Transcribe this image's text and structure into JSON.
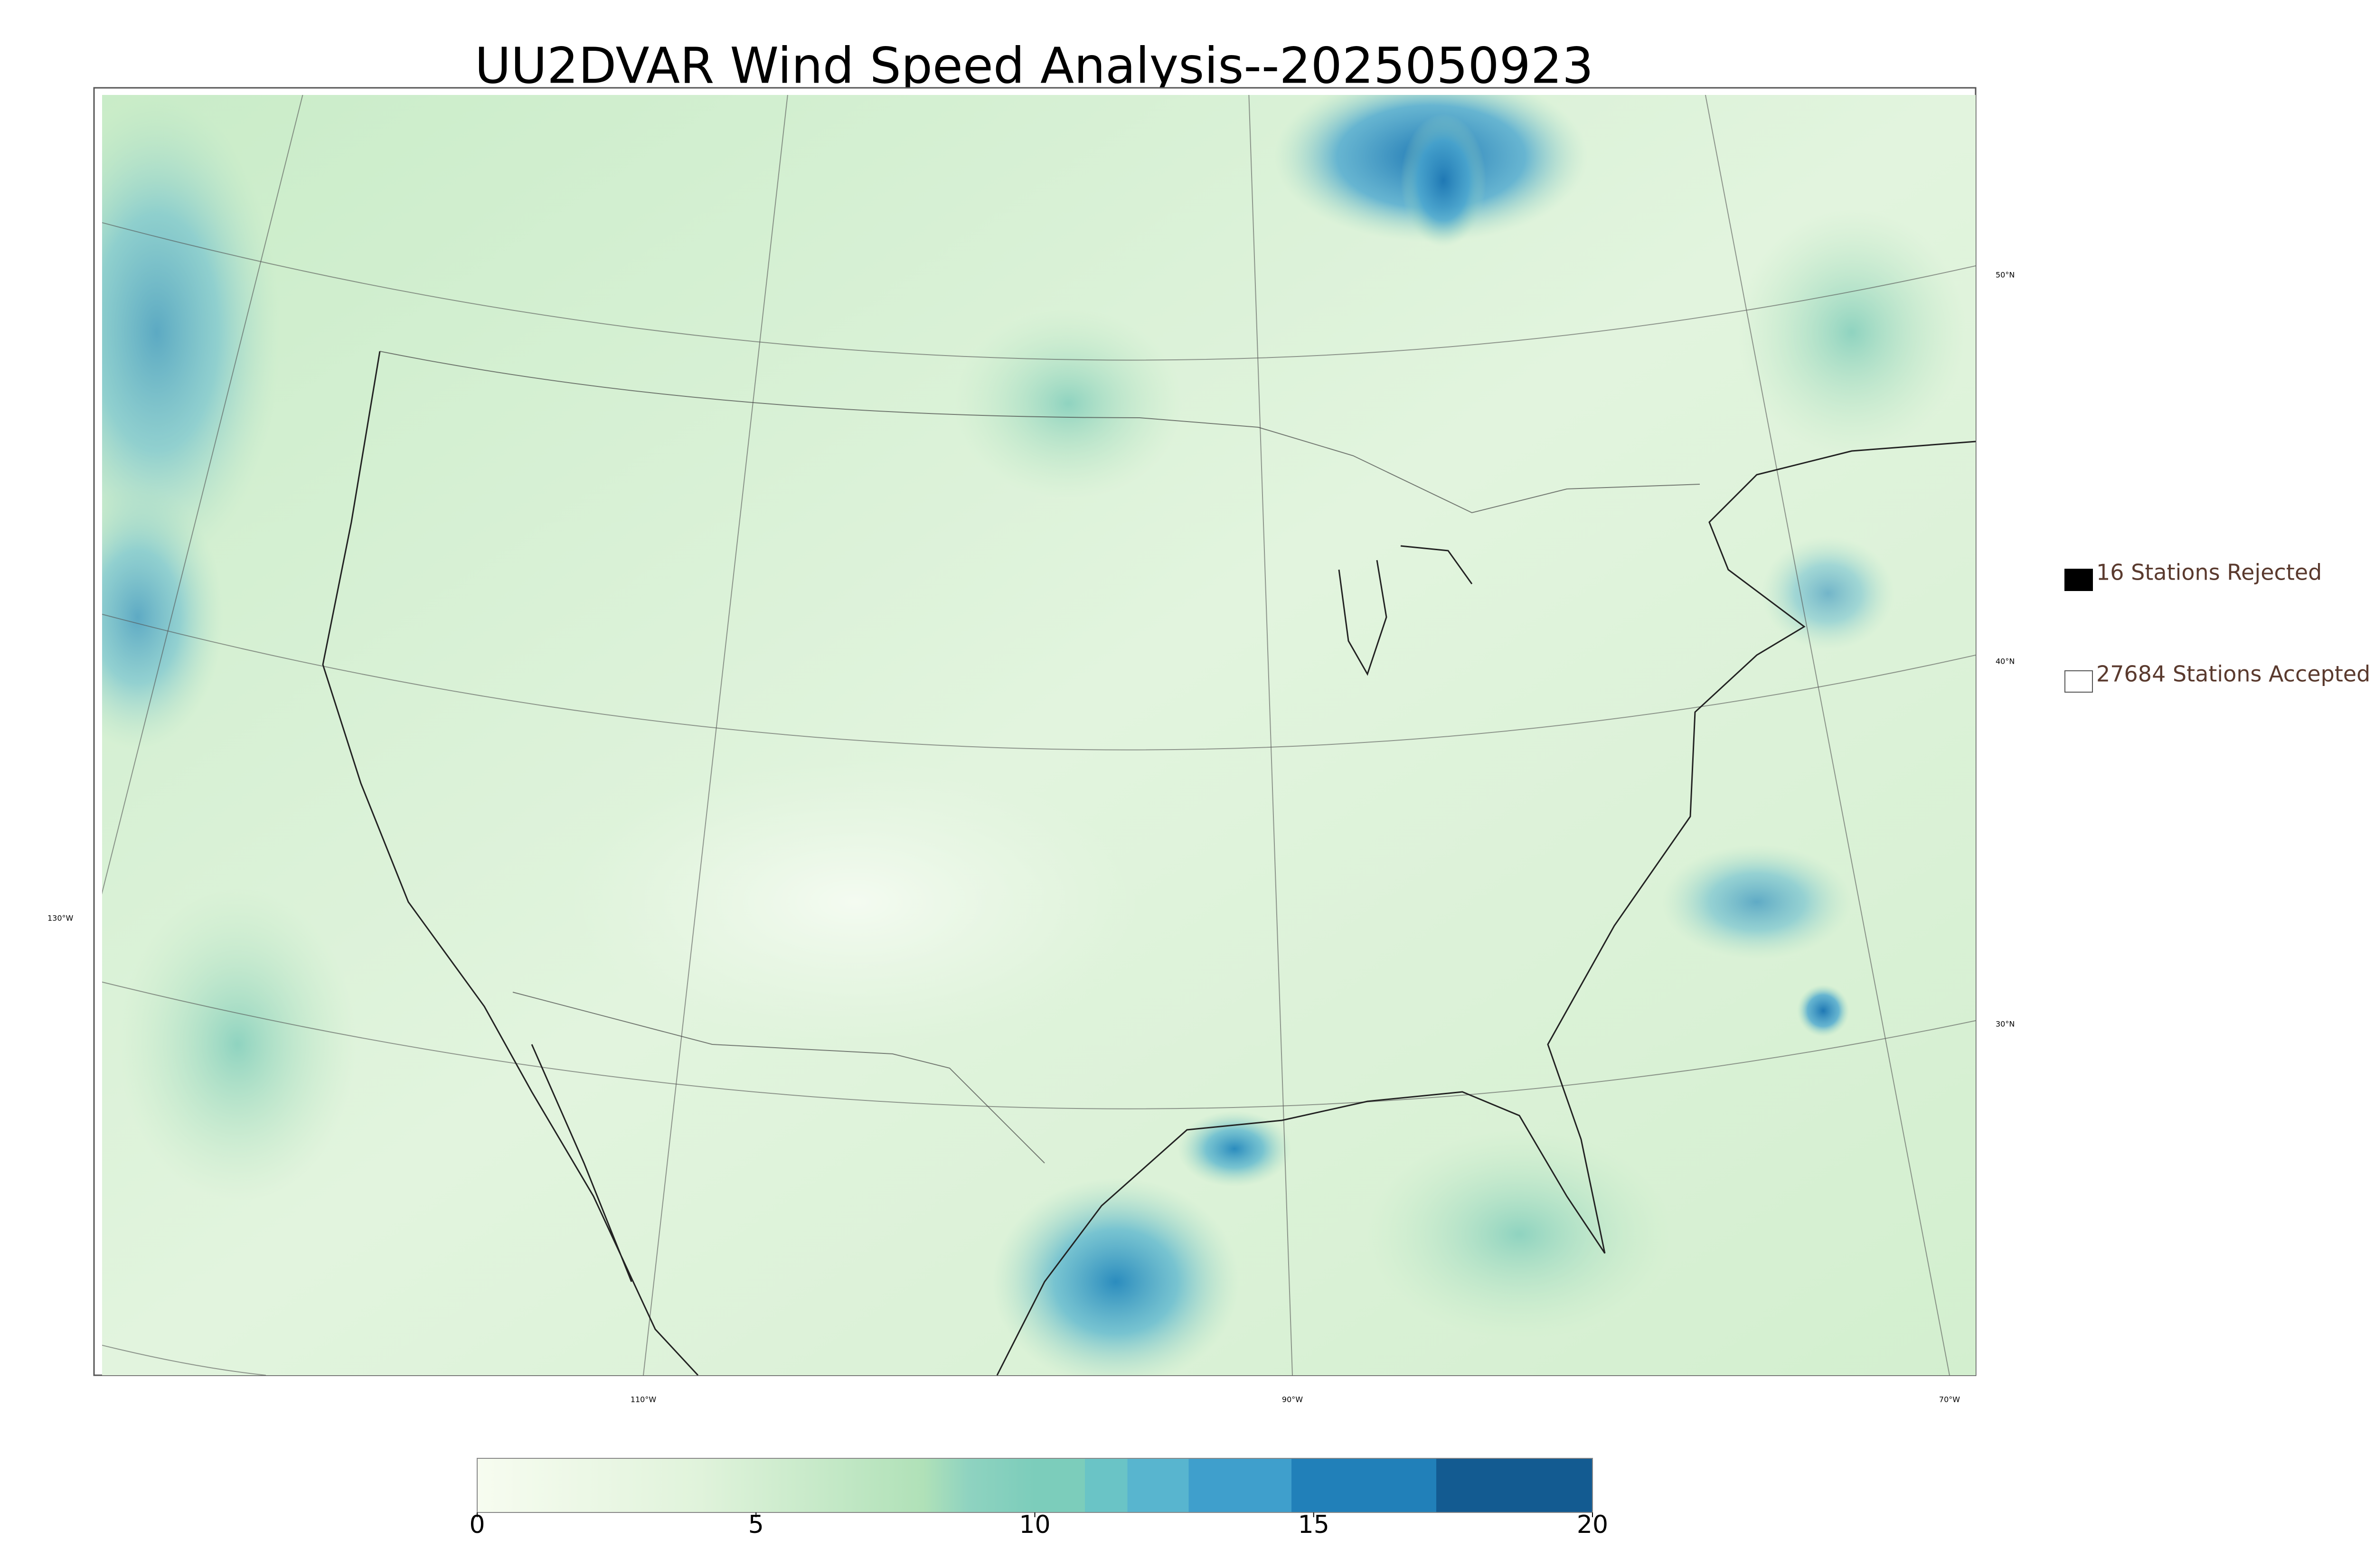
{
  "title": "UU2DVAR Wind Speed Analysis--2025050923",
  "map": {
    "latitude_labels": [
      "50°N",
      "40°N",
      "30°N"
    ],
    "longitude_labels": [
      "130°W",
      "110°W",
      "90°W",
      "70°W"
    ]
  },
  "legend": {
    "items": [
      {
        "label": "16 Stations Rejected"
      },
      {
        "label": "27684 Stations Accepted"
      }
    ]
  },
  "colorbar": {
    "lim": [
      0,
      20
    ],
    "ticks": [
      0,
      5,
      10,
      15,
      20
    ]
  }
}
